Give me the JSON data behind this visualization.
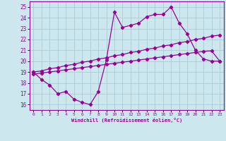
{
  "xlabel": "Windchill (Refroidissement éolien,°C)",
  "background_color": "#cce8ee",
  "grid_color": "#aaccd4",
  "line_color": "#990099",
  "xlim": [
    -0.5,
    23.5
  ],
  "ylim": [
    15.5,
    25.5
  ],
  "xticks": [
    0,
    1,
    2,
    3,
    4,
    5,
    6,
    7,
    8,
    9,
    10,
    11,
    12,
    13,
    14,
    15,
    16,
    17,
    18,
    19,
    20,
    21,
    22,
    23
  ],
  "yticks": [
    16,
    17,
    18,
    19,
    20,
    21,
    22,
    23,
    24,
    25
  ],
  "line1_x": [
    0,
    1,
    2,
    3,
    4,
    5,
    6,
    7,
    8,
    9,
    10,
    11,
    12,
    13,
    14,
    15,
    16,
    17,
    18,
    19,
    20,
    21,
    22,
    23
  ],
  "line1_y": [
    19.0,
    18.3,
    17.8,
    17.0,
    17.2,
    16.5,
    16.2,
    16.0,
    17.2,
    20.1,
    24.5,
    23.1,
    23.3,
    23.5,
    24.1,
    24.3,
    24.3,
    25.0,
    23.5,
    22.5,
    21.0,
    20.2,
    20.0,
    20.0
  ],
  "line2_x": [
    0,
    1,
    2,
    3,
    4,
    5,
    6,
    7,
    8,
    9,
    10,
    11,
    12,
    13,
    14,
    15,
    16,
    17,
    18,
    19,
    20,
    21,
    22,
    23
  ],
  "line2_y": [
    18.8,
    18.9,
    19.0,
    19.1,
    19.2,
    19.3,
    19.4,
    19.5,
    19.6,
    19.7,
    19.8,
    19.9,
    20.0,
    20.1,
    20.2,
    20.3,
    20.4,
    20.5,
    20.6,
    20.7,
    20.8,
    20.9,
    20.95,
    20.0
  ],
  "line3_x": [
    0,
    1,
    2,
    3,
    4,
    5,
    6,
    7,
    8,
    9,
    10,
    11,
    12,
    13,
    14,
    15,
    16,
    17,
    18,
    19,
    20,
    21,
    22,
    23
  ],
  "line3_y": [
    19.0,
    19.1,
    19.3,
    19.4,
    19.6,
    19.7,
    19.9,
    20.0,
    20.2,
    20.3,
    20.5,
    20.6,
    20.8,
    20.9,
    21.1,
    21.2,
    21.4,
    21.5,
    21.7,
    21.8,
    22.0,
    22.1,
    22.3,
    22.4
  ]
}
